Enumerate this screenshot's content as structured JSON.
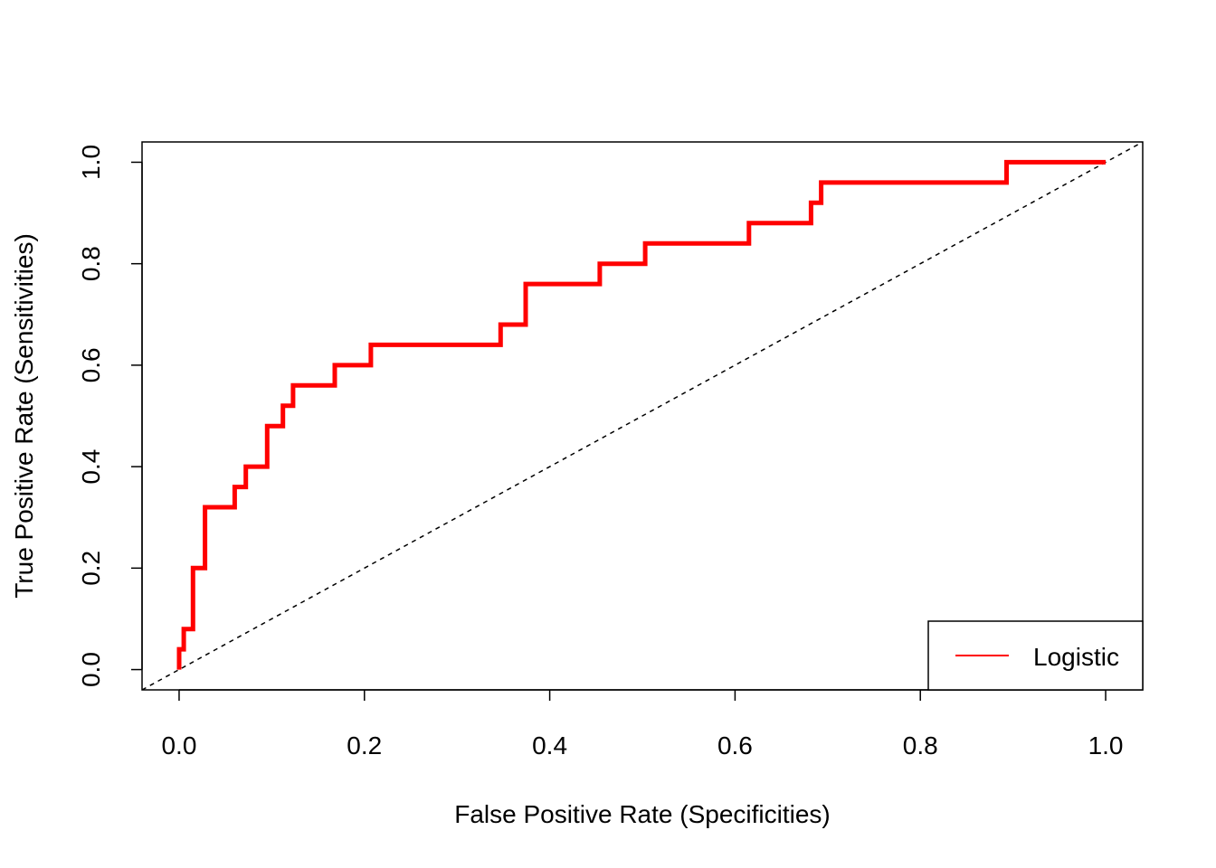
{
  "chart_data": {
    "type": "line",
    "xlabel": "False Positive Rate (Specificities)",
    "ylabel": "True Positive Rate (Sensitivities)",
    "xlim": [
      -0.04,
      1.04
    ],
    "ylim": [
      -0.04,
      1.04
    ],
    "xticks": [
      0.0,
      0.2,
      0.4,
      0.6,
      0.8,
      1.0
    ],
    "xtick_labels": [
      "0.0",
      "0.2",
      "0.4",
      "0.6",
      "0.8",
      "1.0"
    ],
    "yticks": [
      0.0,
      0.2,
      0.4,
      0.6,
      0.8,
      1.0
    ],
    "ytick_labels": [
      "0.0",
      "0.2",
      "0.4",
      "0.6",
      "0.8",
      "1.0"
    ],
    "grid": false,
    "legend_position": "bottom-right",
    "series": [
      {
        "name": "Logistic",
        "color": "#ff0000",
        "style": "step",
        "x": [
          0.0,
          0.0,
          0.005,
          0.005,
          0.01,
          0.01,
          0.015,
          0.015,
          0.028,
          0.028,
          0.035,
          0.035,
          0.06,
          0.06,
          0.072,
          0.072,
          0.095,
          0.095,
          0.112,
          0.112,
          0.123,
          0.123,
          0.168,
          0.168,
          0.207,
          0.207,
          0.347,
          0.347,
          0.374,
          0.374,
          0.454,
          0.454,
          0.503,
          0.503,
          0.615,
          0.615,
          0.682,
          0.682,
          0.693,
          0.693,
          0.893,
          0.893,
          1.0
        ],
        "y": [
          0.0,
          0.04,
          0.04,
          0.08,
          0.08,
          0.08,
          0.08,
          0.2,
          0.2,
          0.32,
          0.32,
          0.32,
          0.32,
          0.36,
          0.36,
          0.4,
          0.4,
          0.48,
          0.48,
          0.52,
          0.52,
          0.56,
          0.56,
          0.6,
          0.6,
          0.64,
          0.64,
          0.68,
          0.68,
          0.76,
          0.76,
          0.8,
          0.8,
          0.84,
          0.84,
          0.88,
          0.88,
          0.92,
          0.92,
          0.96,
          0.96,
          1.0,
          1.0
        ]
      }
    ],
    "reference_line": {
      "x": [
        -0.04,
        1.04
      ],
      "y": [
        -0.04,
        1.04
      ],
      "color": "#000000",
      "style": "dashed"
    }
  }
}
